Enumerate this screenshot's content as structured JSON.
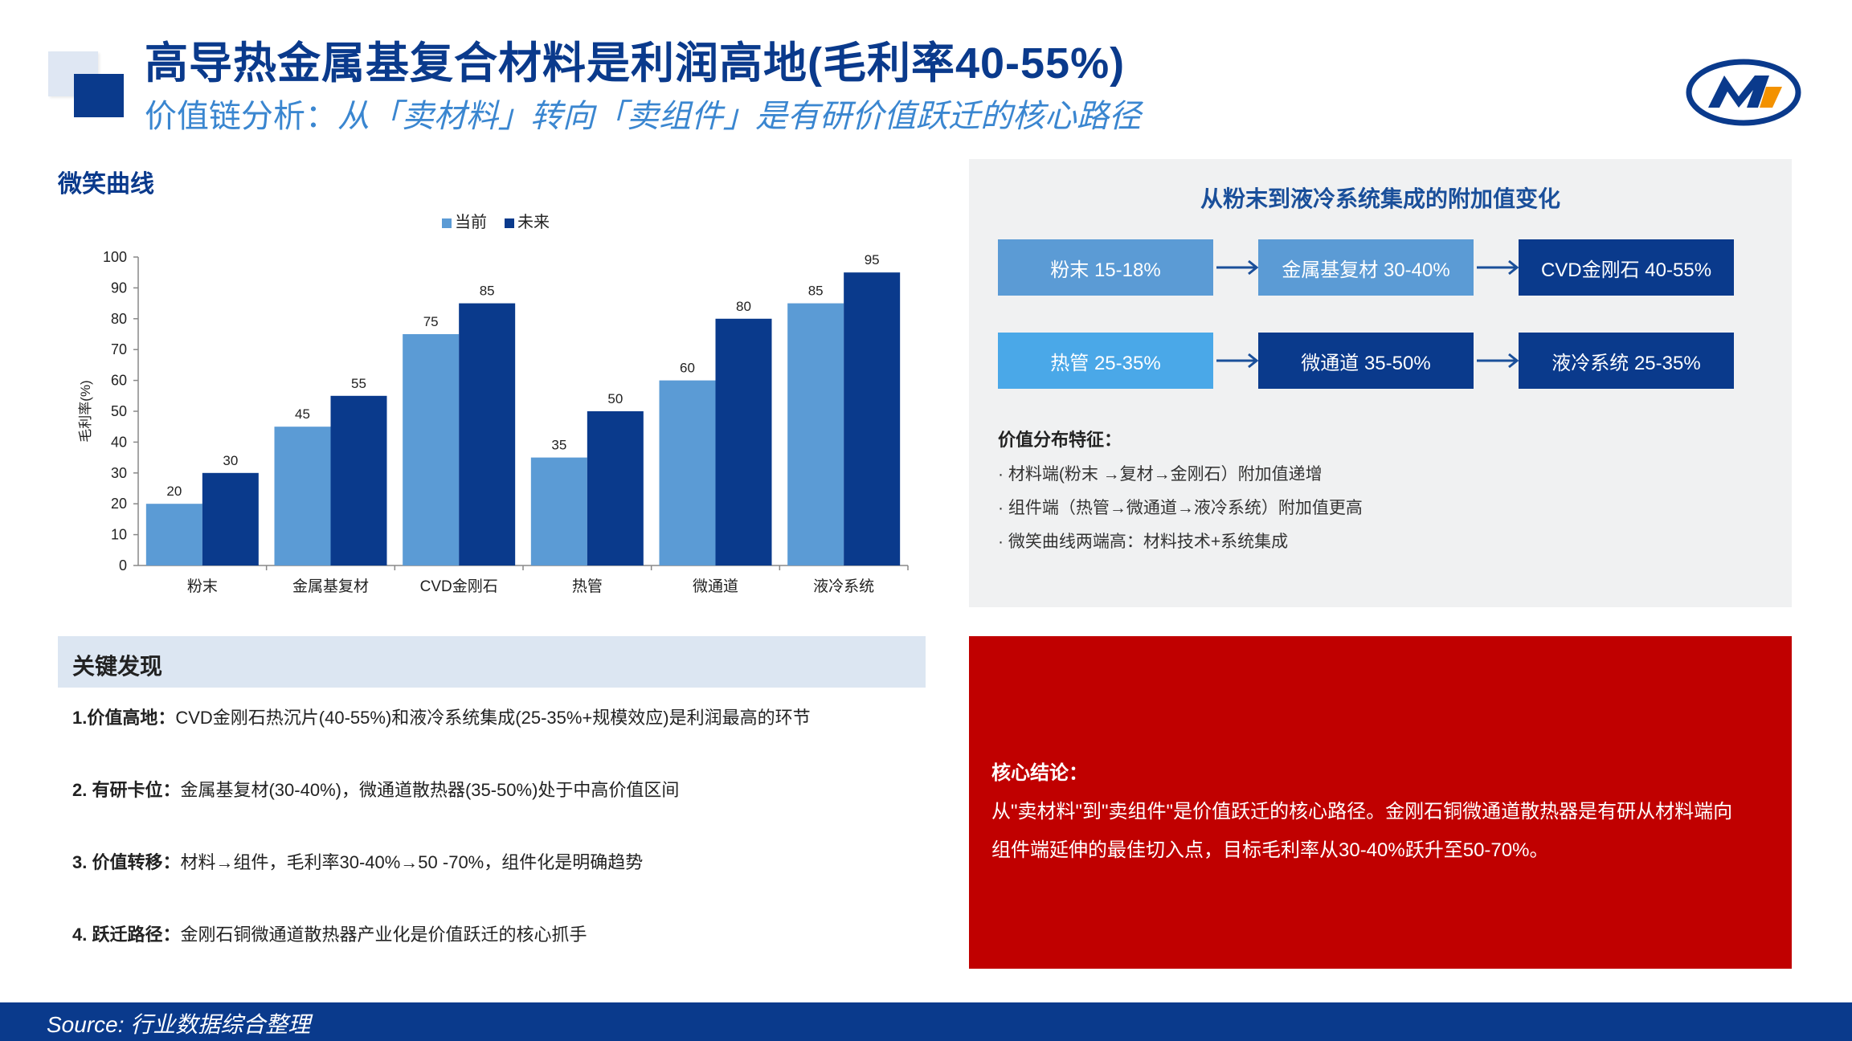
{
  "header": {
    "title": "高导热金属基复合材料是利润高地(毛利率40-55%)",
    "subtitle_lead": "价值链分析：",
    "subtitle_rest": "从「卖材料」转向「卖组件」是有研价值跃迁的核心路径"
  },
  "colors": {
    "primary": "#0a3a8c",
    "light_bar": "#5b9bd5",
    "conclusion_bg": "#c00000",
    "panel_bg": "#f0f1f2"
  },
  "chart_section": {
    "heading": "微笑曲线"
  },
  "chart_data": {
    "type": "bar",
    "title": "",
    "xlabel": "",
    "ylabel": "毛利率(%)",
    "ylim": [
      0,
      100
    ],
    "yticks": [
      0,
      10,
      20,
      30,
      40,
      50,
      60,
      70,
      80,
      90,
      100
    ],
    "categories": [
      "粉末",
      "金属基复材",
      "CVD金刚石",
      "热管",
      "微通道",
      "液冷系统"
    ],
    "legend_position": "top",
    "series": [
      {
        "name": "当前",
        "color": "#5b9bd5",
        "values": [
          20,
          45,
          75,
          35,
          60,
          85
        ]
      },
      {
        "name": "未来",
        "color": "#0a3a8c",
        "values": [
          30,
          55,
          85,
          50,
          80,
          95
        ]
      }
    ]
  },
  "value_panel": {
    "title": "从粉末到液冷系统集成的附加值变化",
    "row1": [
      "粉末 15-18%",
      "金属基复材 30-40%",
      "CVD金刚石 40-55%"
    ],
    "row2": [
      "热管 25-35%",
      "微通道 35-50%",
      "液冷系统 25-35%"
    ],
    "features_title": "价值分布特征：",
    "features": [
      "· 材料端(粉末 →复材→金刚石）附加值递增",
      "· 组件端（热管→微通道→液冷系统）附加值更高",
      "· 微笑曲线两端高：材料技术+系统集成"
    ]
  },
  "findings": {
    "title": "关键发现",
    "items": [
      {
        "label": "1.价值高地：",
        "text": "CVD金刚石热沉片(40-55%)和液冷系统集成(25-35%+规模效应)是利润最高的环节"
      },
      {
        "label": "2. 有研卡位：",
        "text": "金属基复材(30-40%)，微通道散热器(35-50%)处于中高价值区间"
      },
      {
        "label": "3. 价值转移：",
        "text": "材料→组件，毛利率30-40%→50 -70%，组件化是明确趋势"
      },
      {
        "label": "4. 跃迁路径：",
        "text": "金刚石铜微通道散热器产业化是价值跃迁的核心抓手"
      }
    ]
  },
  "conclusion": {
    "title": "核心结论：",
    "line1": "从\"卖材料\"到\"卖组件\"是价值跃迁的核心路径。金刚石铜微通道散热器是有研从材料端向",
    "line2": "组件端延伸的最佳切入点，目标毛利率从30-40%跃升至50-70%。"
  },
  "footer": {
    "source": "Source: 行业数据综合整理"
  }
}
